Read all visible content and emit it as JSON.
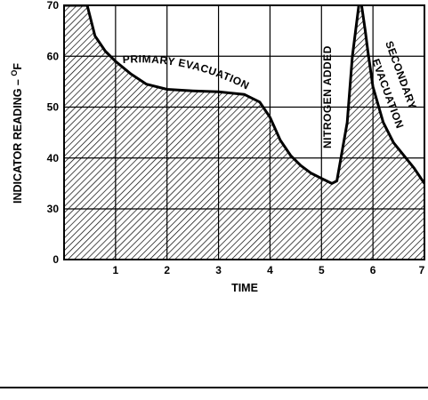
{
  "chart_data": {
    "type": "area",
    "xlabel": "TIME",
    "ylabel": "INDICATOR READING – ",
    "ylabel_unit": "F",
    "ylabel_degree": "O",
    "xlim": [
      0,
      7
    ],
    "ylim": [
      0,
      70
    ],
    "x_ticks": [
      "1",
      "2",
      "3",
      "4",
      "5",
      "6",
      "7"
    ],
    "y_ticks": [
      "0",
      "30",
      "40",
      "50",
      "60",
      "70"
    ],
    "grid": true,
    "fill": "hatched",
    "series": [
      {
        "x": [
          0.0,
          0.3,
          0.45,
          0.6,
          0.8,
          1.0,
          1.3,
          1.6,
          2.0,
          2.5,
          3.0,
          3.5,
          3.8,
          4.0,
          4.2,
          4.4,
          4.6,
          4.8,
          5.0,
          5.2,
          5.3,
          5.5,
          5.6,
          5.75,
          5.85,
          5.9,
          6.0,
          6.2,
          6.4,
          6.6,
          6.8,
          7.0
        ],
        "y": [
          70,
          70,
          70,
          64,
          61,
          59,
          56.5,
          54.5,
          53.5,
          53.2,
          53,
          52.5,
          51,
          48,
          43.5,
          40.5,
          38.5,
          37,
          36,
          35,
          35.5,
          47,
          60,
          72,
          65,
          61,
          54,
          47,
          43,
          40.5,
          38,
          35
        ]
      }
    ],
    "annotations": [
      {
        "text": "PRIMARY EVACUATION"
      },
      {
        "text": "NITROGEN ADDED"
      },
      {
        "text": "SECONDARY"
      },
      {
        "text": "EVACUATION"
      }
    ]
  }
}
